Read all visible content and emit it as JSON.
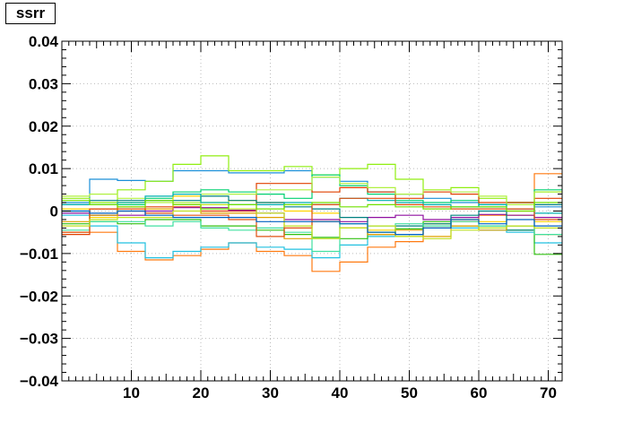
{
  "title": "ssrr",
  "chart_data": {
    "type": "line",
    "style": "step",
    "title": "ssrr",
    "xlabel": "",
    "ylabel": "",
    "xlim": [
      0,
      72
    ],
    "ylim": [
      -0.04,
      0.04
    ],
    "grid": true,
    "legend": "none",
    "x_ticks": [
      10,
      20,
      30,
      40,
      50,
      60,
      70
    ],
    "x_tick_labels": [
      "10",
      "20",
      "30",
      "40",
      "50",
      "60",
      "70"
    ],
    "y_ticks": [
      -0.04,
      -0.03,
      -0.02,
      -0.01,
      0,
      0.01,
      0.02,
      0.03,
      0.04
    ],
    "y_tick_labels": [
      "−0.04",
      "−0.03",
      "−0.02",
      "−0.01",
      "0",
      "0.01",
      "0.02",
      "0.03",
      "0.04"
    ],
    "bin_edges": [
      0,
      4,
      8,
      12,
      16,
      20,
      24,
      28,
      32,
      36,
      40,
      44,
      48,
      52,
      56,
      60,
      64,
      68,
      72
    ],
    "series": [
      {
        "color": "#1b8fd8",
        "values": [
          0.002,
          0.0075,
          0.0072,
          0.007,
          0.0095,
          0.0095,
          0.009,
          0.009,
          0.0095,
          0.008,
          0.007,
          0.0045,
          0.004,
          0.003,
          0.002,
          0.0015,
          0.002,
          0.001
        ]
      },
      {
        "color": "#90ee10",
        "values": [
          0.003,
          0.002,
          0.005,
          0.007,
          0.011,
          0.013,
          0.0095,
          0.0095,
          0.0105,
          0.0085,
          0.01,
          0.011,
          0.0075,
          0.005,
          0.0055,
          0.003,
          0.002,
          0.0045
        ]
      },
      {
        "color": "#ff7a10",
        "values": [
          -0.005,
          -0.005,
          -0.0095,
          -0.0115,
          -0.0105,
          -0.009,
          -0.0075,
          -0.0095,
          -0.0105,
          -0.0142,
          -0.012,
          -0.0085,
          -0.0072,
          -0.004,
          -0.0025,
          -0.001,
          0.0,
          0.0088
        ]
      },
      {
        "color": "#20c0e0",
        "values": [
          -0.001,
          -0.0035,
          -0.0075,
          -0.011,
          -0.0095,
          -0.0085,
          -0.0075,
          -0.0085,
          -0.009,
          -0.011,
          -0.008,
          -0.006,
          -0.0055,
          -0.003,
          -0.004,
          -0.0045,
          -0.005,
          -0.0075
        ]
      },
      {
        "color": "#00d070",
        "values": [
          0.0,
          -0.001,
          0.0015,
          0.003,
          0.0045,
          0.005,
          0.0045,
          0.004,
          0.003,
          0.0085,
          0.006,
          0.004,
          0.0025,
          0.002,
          0.0025,
          0.001,
          0.002,
          0.005
        ]
      },
      {
        "color": "#e04000",
        "values": [
          -0.0055,
          0.0005,
          0.0,
          0.001,
          0.001,
          0.0,
          0.0,
          0.0065,
          0.0065,
          0.0045,
          0.0055,
          0.0045,
          0.003,
          0.0045,
          0.004,
          0.002,
          0.002,
          0.003
        ]
      },
      {
        "color": "#ffd400",
        "values": [
          0.0005,
          -0.0015,
          0.002,
          0.0025,
          0.0035,
          0.002,
          0.0025,
          0.002,
          0.0,
          -0.0005,
          -0.004,
          -0.0045,
          -0.006,
          -0.003,
          -0.002,
          -0.0025,
          -0.001,
          -0.0025
        ]
      },
      {
        "color": "#30c010",
        "values": [
          -0.003,
          -0.0025,
          -0.003,
          -0.002,
          -0.002,
          -0.0035,
          -0.0035,
          -0.0045,
          -0.0055,
          -0.0062,
          -0.0065,
          -0.005,
          -0.0042,
          -0.0025,
          -0.0035,
          -0.0035,
          -0.0045,
          -0.0102
        ]
      },
      {
        "color": "#9010a0",
        "values": [
          -0.0005,
          -0.001,
          -0.001,
          0.0,
          0.0008,
          0.0008,
          0.0002,
          -0.0005,
          -0.002,
          -0.002,
          -0.0025,
          -0.0015,
          -0.001,
          -0.002,
          -0.0015,
          -0.0008,
          -0.001,
          -0.0015
        ]
      },
      {
        "color": "#008080",
        "values": [
          0.0015,
          0.0025,
          0.0025,
          0.0025,
          0.0025,
          0.0035,
          0.0025,
          0.002,
          0.001,
          0.0005,
          -0.0015,
          -0.0055,
          -0.0035,
          -0.003,
          -0.001,
          0.0,
          -0.0045,
          0.0015
        ]
      },
      {
        "color": "#b0f040",
        "values": [
          0.0035,
          0.004,
          0.003,
          0.002,
          0.002,
          0.004,
          0.004,
          0.005,
          0.005,
          0.008,
          0.0065,
          0.0055,
          0.004,
          0.005,
          0.0045,
          0.0035,
          0.0015,
          0.0045
        ]
      },
      {
        "color": "#e0a000",
        "values": [
          -0.0025,
          -0.001,
          0.001,
          0.0005,
          0.0015,
          -0.0005,
          -0.0005,
          -0.0015,
          -0.0065,
          -0.0025,
          -0.004,
          -0.0055,
          -0.0045,
          -0.006,
          -0.0035,
          -0.0045,
          -0.0035,
          -0.0055
        ]
      },
      {
        "color": "#00b0b0",
        "values": [
          0.0015,
          0.0015,
          0.002,
          0.0035,
          0.004,
          0.002,
          0.0015,
          0.0015,
          0.002,
          0.0015,
          0.003,
          0.0025,
          0.002,
          0.0015,
          0.001,
          0.0015,
          0.0005,
          -0.0005
        ]
      },
      {
        "color": "#40e0a0",
        "values": [
          -0.0045,
          -0.0025,
          -0.0025,
          -0.0035,
          -0.0025,
          -0.004,
          -0.0045,
          -0.004,
          -0.005,
          -0.0095,
          -0.003,
          -0.0035,
          -0.003,
          -0.0035,
          -0.0025,
          -0.0035,
          -0.0035,
          -0.0055
        ]
      },
      {
        "color": "#e05010",
        "values": [
          -0.005,
          0.0005,
          0.0005,
          -0.0005,
          -0.001,
          -0.001,
          -0.002,
          -0.006,
          -0.004,
          0.0015,
          0.003,
          0.003,
          0.0015,
          0.001,
          0.0005,
          0.0005,
          0.0005,
          -0.002
        ]
      },
      {
        "color": "#c0e020",
        "values": [
          -0.0035,
          -0.002,
          -0.0015,
          -0.0015,
          0.0,
          0.0015,
          0.0005,
          -0.0005,
          -0.0035,
          -0.0065,
          -0.004,
          -0.0035,
          -0.006,
          -0.0065,
          -0.0045,
          -0.004,
          -0.0035,
          -0.004
        ]
      },
      {
        "color": "#0060c0",
        "values": [
          0.0,
          -0.0005,
          0.0,
          -0.001,
          -0.0015,
          -0.0015,
          -0.0015,
          -0.0025,
          -0.0025,
          -0.0025,
          -0.003,
          -0.005,
          -0.0055,
          -0.004,
          -0.002,
          -0.003,
          -0.002,
          -0.0035
        ]
      },
      {
        "color": "#70e000",
        "values": [
          0.0025,
          0.0015,
          0.001,
          0.0025,
          0.0015,
          0.0005,
          0.0015,
          0.0005,
          0.0015,
          0.002,
          0.001,
          0.0015,
          0.001,
          0.0005,
          0.001,
          0.001,
          0.0,
          0.002
        ]
      }
    ]
  }
}
